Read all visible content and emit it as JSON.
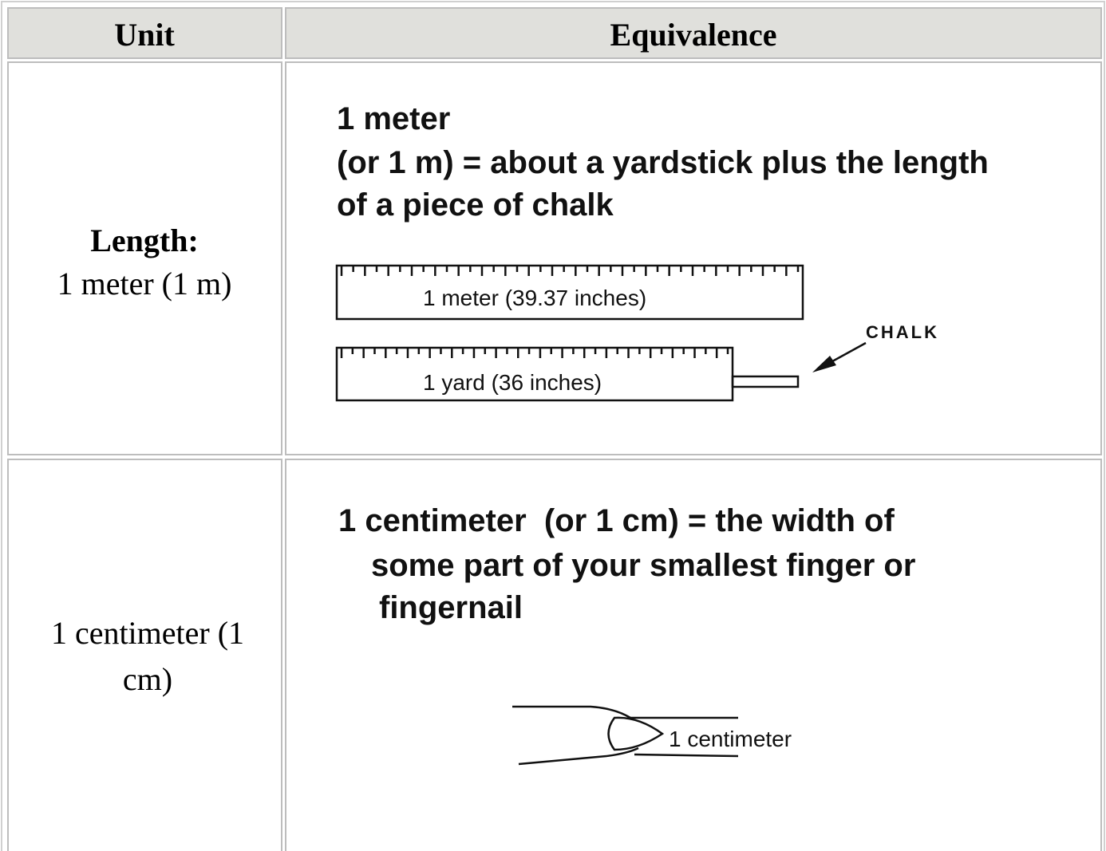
{
  "table": {
    "header": [
      "Unit",
      "Equivalence"
    ],
    "rows": [
      {
        "unit_label": "Length:",
        "unit": "1 meter (1 m)",
        "equivalence": {
          "lines": [
            "1 meter",
            "(or 1 m) = about a yardstick plus the length",
            "of a piece of chalk"
          ],
          "ruler_1": "1 meter (39.37 inches)",
          "ruler_2": "1 yard (36 inches)",
          "arrow_label": "CHALK"
        }
      },
      {
        "unit": "1 centimeter (1 cm)",
        "equivalence": {
          "lines": [
            "1 centimeter  (or 1 cm) = the width of",
            "some part of your smallest finger or",
            "fingernail"
          ],
          "finger_label": "1 centimeter"
        }
      }
    ]
  }
}
